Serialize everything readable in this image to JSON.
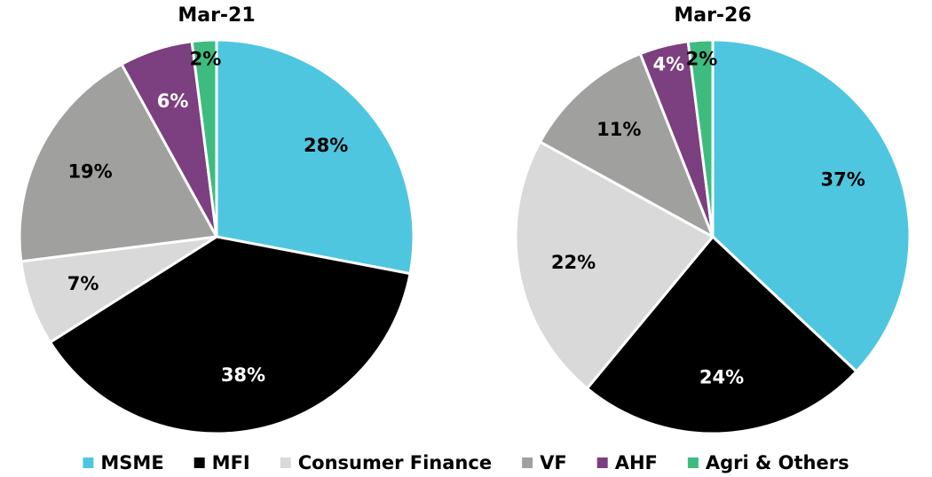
{
  "chart_data": [
    {
      "type": "pie",
      "title": "Mar-21",
      "categories": [
        "MSME",
        "MFI",
        "Consumer Finance",
        "VF",
        "AHF",
        "Agri & Others"
      ],
      "colors": [
        "#4fc6e0",
        "#000000",
        "#d9d9d9",
        "#a0a09f",
        "#7c3f7f",
        "#3ebc80"
      ],
      "values": [
        28,
        38,
        7,
        19,
        6,
        2
      ],
      "value_labels": [
        "28%",
        "38%",
        "7%",
        "19%",
        "6%",
        "2%"
      ]
    },
    {
      "type": "pie",
      "title": "Mar-26",
      "categories": [
        "MSME",
        "MFI",
        "Consumer Finance",
        "VF",
        "AHF",
        "Agri & Others"
      ],
      "colors": [
        "#4fc6e0",
        "#000000",
        "#d9d9d9",
        "#a0a09f",
        "#7c3f7f",
        "#3ebc80"
      ],
      "values": [
        37,
        24,
        22,
        11,
        4,
        2
      ],
      "value_labels": [
        "37%",
        "24%",
        "22%",
        "11%",
        "4%",
        "2%"
      ]
    }
  ]
}
